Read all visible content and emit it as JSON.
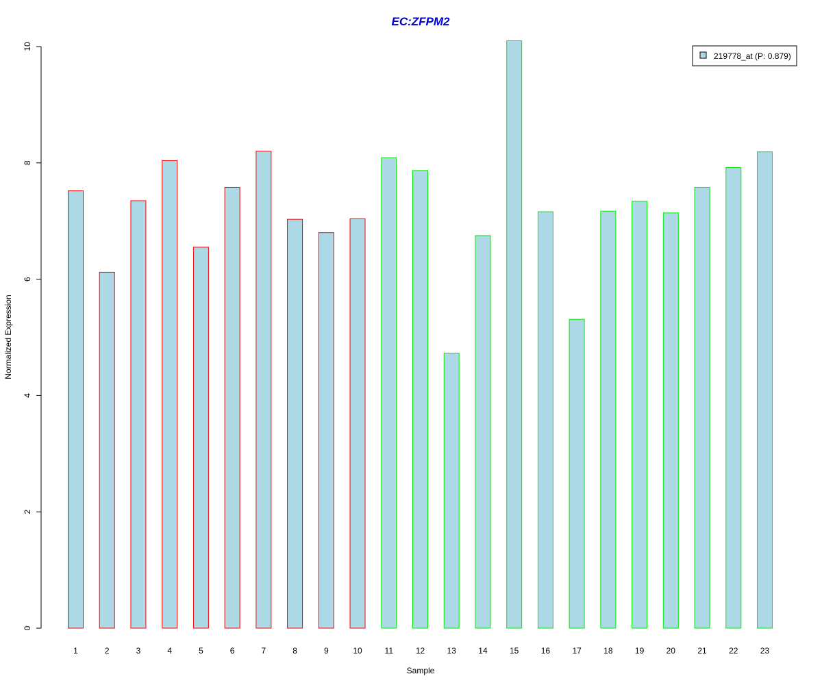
{
  "chart_data": {
    "type": "bar",
    "title": "EC:ZFPM2",
    "xlabel": "Sample",
    "ylabel": "Normalized Expression",
    "ylim": [
      0,
      10
    ],
    "yticks": [
      "0",
      "2",
      "4",
      "6",
      "8",
      "10"
    ],
    "categories": [
      "1",
      "2",
      "3",
      "4",
      "5",
      "6",
      "7",
      "8",
      "9",
      "10",
      "11",
      "12",
      "13",
      "14",
      "15",
      "16",
      "17",
      "18",
      "19",
      "20",
      "21",
      "22",
      "23"
    ],
    "series": [
      {
        "name": "219778_at (P: 0.879)",
        "values": [
          7.52,
          6.12,
          7.35,
          8.04,
          6.55,
          7.58,
          8.2,
          7.03,
          6.8,
          7.04,
          8.09,
          7.87,
          4.73,
          6.75,
          10.1,
          7.16,
          5.31,
          7.17,
          7.34,
          7.14,
          7.58,
          7.92,
          8.19
        ]
      }
    ],
    "group_border_colors": [
      "#ff0000",
      "#ff0000",
      "#ff0000",
      "#ff0000",
      "#ff0000",
      "#ff0000",
      "#ff0000",
      "#ff0000",
      "#ff0000",
      "#ff0000",
      "#00ee00",
      "#00ee00",
      "#00ee00",
      "#00ee00",
      "#00ee00",
      "#00ee00",
      "#00ee00",
      "#00ee00",
      "#00ee00",
      "#00ee00",
      "#00ee00",
      "#00ee00",
      "#00ee00"
    ],
    "bar_fill": "#add8e6",
    "title_color": "#0000cc",
    "grid": false,
    "legend_position": "top-right"
  }
}
